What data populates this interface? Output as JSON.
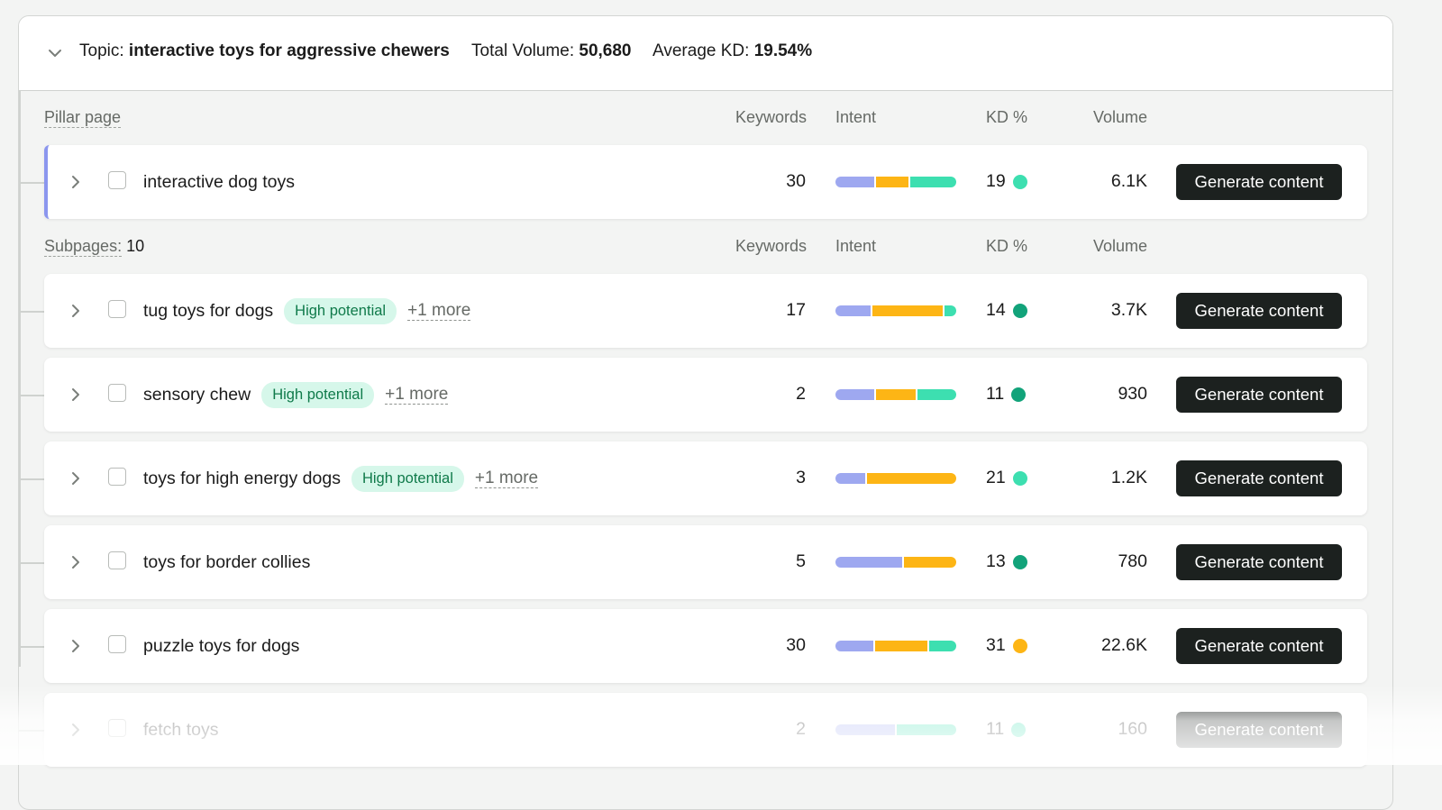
{
  "topic": {
    "label": "Topic:",
    "name": "interactive toys for aggressive chewers",
    "total_volume_label": "Total Volume:",
    "total_volume": "50,680",
    "avg_kd_label": "Average KD:",
    "avg_kd": "19.54%"
  },
  "headers": {
    "pillar_label": "Pillar page",
    "subpages_label": "Subpages:",
    "subpages_count": "10",
    "keywords": "Keywords",
    "intent": "Intent",
    "kd": "KD %",
    "volume": "Volume"
  },
  "colors": {
    "intent_purple": "#9ea8f0",
    "intent_yellow": "#fdb515",
    "intent_teal": "#3ddfb0",
    "kd_easy": "#3ddfb0",
    "kd_medium": "#12a37a",
    "kd_hard": "#fdb515",
    "button_bg": "#1c211f",
    "badge_bg": "#d6f7ea",
    "pillar_accent": "#8b96ee"
  },
  "pillar": {
    "name": "interactive dog toys",
    "keywords": "30",
    "intent": [
      0.33,
      0.28,
      0.39
    ],
    "kd": "19",
    "kd_color": "#3ddfb0",
    "volume": "6.1K",
    "button": "Generate content"
  },
  "subpages": [
    {
      "name": "tug toys for dogs",
      "badge": "High potential",
      "more": "+1 more",
      "keywords": "17",
      "intent": [
        0.3,
        0.6,
        0.1
      ],
      "kd": "14",
      "kd_color": "#12a37a",
      "volume": "3.7K",
      "button": "Generate content"
    },
    {
      "name": "sensory chew",
      "badge": "High potential",
      "more": "+1 more",
      "keywords": "2",
      "intent": [
        0.33,
        0.34,
        0.33
      ],
      "kd": "11",
      "kd_color": "#12a37a",
      "volume": "930",
      "button": "Generate content"
    },
    {
      "name": "toys for high energy dogs",
      "badge": "High potential",
      "more": "+1 more",
      "keywords": "3",
      "intent": [
        0.25,
        0.75
      ],
      "kd": "21",
      "kd_color": "#3ddfb0",
      "volume": "1.2K",
      "button": "Generate content"
    },
    {
      "name": "toys for border collies",
      "badge": "",
      "more": "",
      "keywords": "5",
      "intent": [
        0.56,
        0.44
      ],
      "kd": "13",
      "kd_color": "#12a37a",
      "volume": "780",
      "button": "Generate content"
    },
    {
      "name": "puzzle toys for dogs",
      "badge": "",
      "more": "",
      "keywords": "30",
      "intent": [
        0.32,
        0.45,
        0.23
      ],
      "kd": "31",
      "kd_color": "#fdb515",
      "volume": "22.6K",
      "button": "Generate content"
    },
    {
      "name": "fetch toys",
      "badge": "",
      "more": "",
      "keywords": "2",
      "intent": [
        0.5,
        0.5
      ],
      "kd": "11",
      "kd_color": "#3ddfb0",
      "volume": "160",
      "button": "Generate content"
    }
  ]
}
